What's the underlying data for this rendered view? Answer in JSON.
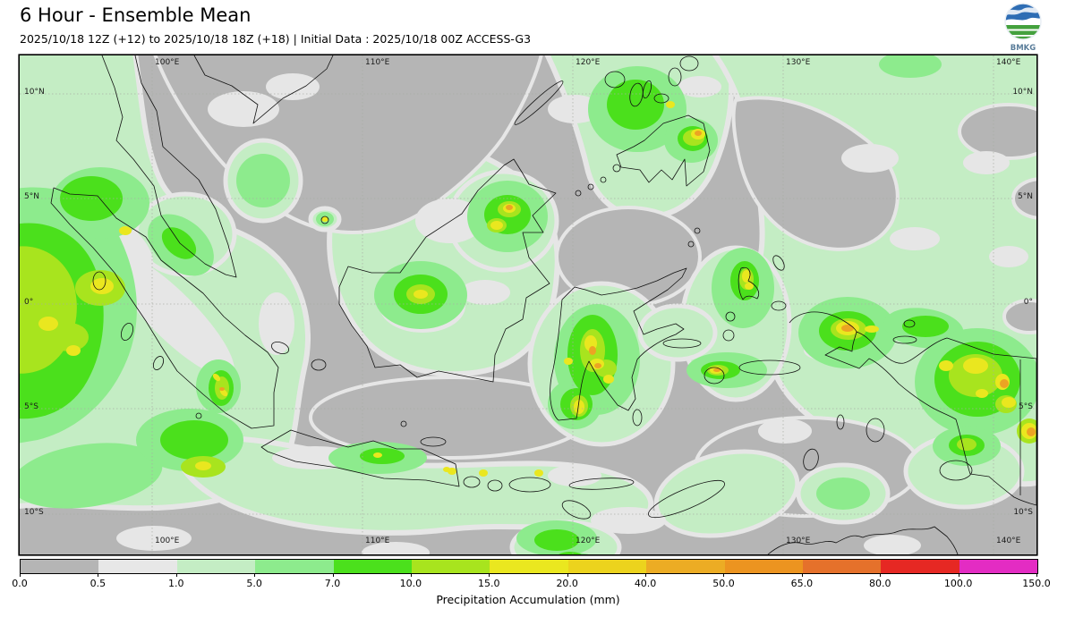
{
  "header": {
    "title": "6 Hour - Ensemble Mean",
    "subtitle": "2025/10/18 12Z (+12) to 2025/10/18 18Z (+18) | Initial Data : 2025/10/18 00Z ACCESS-G3",
    "logo_text": "BMKG"
  },
  "map": {
    "lon_labels": [
      "100°E",
      "110°E",
      "120°E",
      "130°E",
      "140°E"
    ],
    "lat_labels": [
      "10°N",
      "5°N",
      "0°",
      "5°S",
      "10°S"
    ]
  },
  "colorbar": {
    "label": "Precipitation Accumulation (mm)",
    "ticks": [
      "0.0",
      "0.5",
      "1.0",
      "5.0",
      "7.0",
      "10.0",
      "15.0",
      "20.0",
      "40.0",
      "50.0",
      "65.0",
      "80.0",
      "100.0",
      "150.0"
    ],
    "colors": [
      "#b5b5b5",
      "#e7e7e7",
      "#c4edc4",
      "#8deb8d",
      "#4be01c",
      "#a8e41e",
      "#eae71f",
      "#ecd31d",
      "#ecac24",
      "#ec9420",
      "#e5712b",
      "#e62823",
      "#e32cc3"
    ]
  }
}
